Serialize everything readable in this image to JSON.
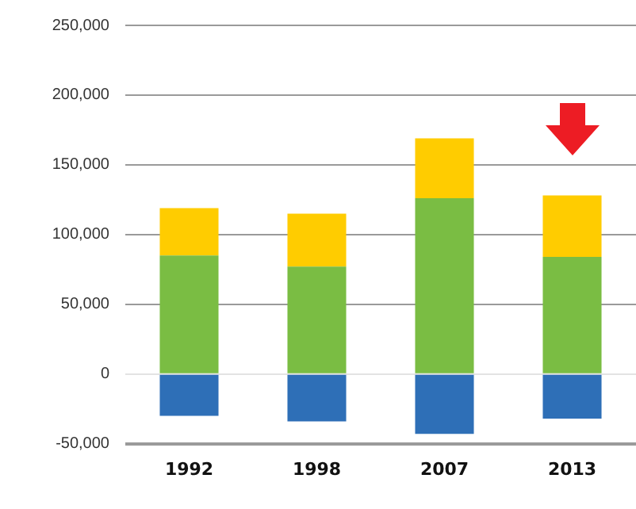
{
  "chart_data": {
    "type": "bar",
    "stacked": true,
    "categories": [
      "1992",
      "1998",
      "2007",
      "2013"
    ],
    "series": [
      {
        "color": "#2e6fb7",
        "values": [
          -30000,
          -34000,
          -43000,
          -32000
        ]
      },
      {
        "color": "#7abd43",
        "values": [
          85000,
          77000,
          126000,
          84000
        ]
      },
      {
        "color": "#ffcc00",
        "values": [
          34000,
          38000,
          43000,
          44000
        ]
      }
    ],
    "ylim": [
      -50000,
      250000
    ],
    "yticks": [
      {
        "value": -50000,
        "label": "-50,000"
      },
      0,
      {
        "value": 50000,
        "label": "50,000"
      },
      {
        "value": 100000,
        "label": "100,000"
      },
      {
        "value": 150000,
        "label": "150,000"
      },
      {
        "value": 200000,
        "label": "200,000"
      },
      {
        "value": 250000,
        "label": "250,000"
      }
    ],
    "grid": "y",
    "legend": false
  }
}
